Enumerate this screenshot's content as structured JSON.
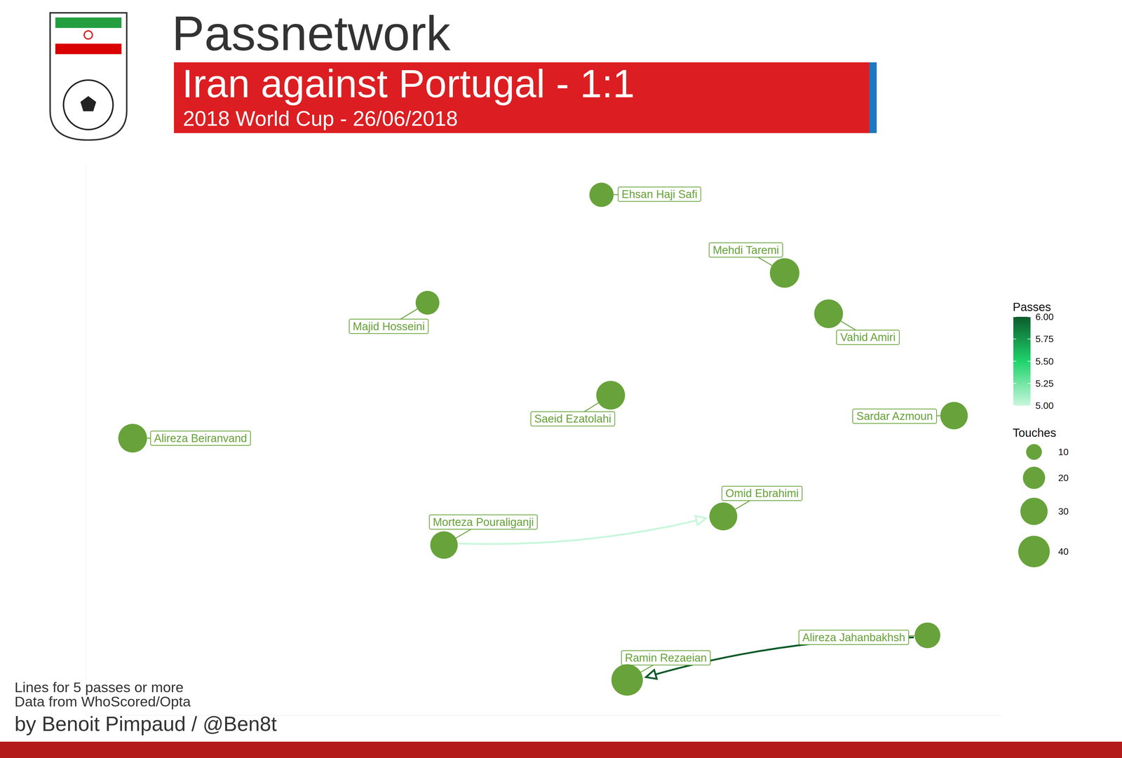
{
  "chart_data": {
    "type": "network",
    "title": "Passnetwork",
    "subtitle": "Iran against Portugal - 1:1",
    "caption": "2018 World Cup - 26/06/2018",
    "notes": [
      "Lines for 5 passes or more",
      "Data from WhoScored/Opta"
    ],
    "credit": "by Benoit Pimpaud / @Ben8t",
    "xlim": [
      0,
      100
    ],
    "ylim": [
      0,
      100
    ],
    "tick_labels": false,
    "grid": false,
    "color": "#67a33a",
    "nodes": [
      {
        "name": "Ehsan Haji Safi",
        "x": 56.3,
        "y": 94.5,
        "touches": 25
      },
      {
        "name": "Mehdi Taremi",
        "x": 76.3,
        "y": 80.3,
        "touches": 37
      },
      {
        "name": "Majid Hosseini",
        "x": 37.3,
        "y": 74.9,
        "touches": 24
      },
      {
        "name": "Vahid Amiri",
        "x": 81.1,
        "y": 72.9,
        "touches": 35
      },
      {
        "name": "Saeid Ezatolahi",
        "x": 57.3,
        "y": 58.1,
        "touches": 35
      },
      {
        "name": "Alireza Beiranvand",
        "x": 5.1,
        "y": 50.3,
        "touches": 35
      },
      {
        "name": "Sardar Azmoun",
        "x": 94.8,
        "y": 54.4,
        "touches": 32
      },
      {
        "name": "Omid Ebrahimi",
        "x": 69.6,
        "y": 36.1,
        "touches": 33
      },
      {
        "name": "Morteza Pouraliganji",
        "x": 39.1,
        "y": 30.9,
        "touches": 32
      },
      {
        "name": "Ramin Rezaeian",
        "x": 59.1,
        "y": 6.4,
        "touches": 42
      },
      {
        "name": "Alireza Jahanbakhsh",
        "x": 91.9,
        "y": 14.5,
        "touches": 28
      }
    ],
    "edges": [
      {
        "source": "Morteza Pouraliganji",
        "target": "Omid Ebrahimi",
        "passes": 5
      },
      {
        "source": "Alireza Jahanbakhsh",
        "target": "Ramin Rezaeian",
        "passes": 6
      }
    ],
    "colorbar": {
      "title": "Passes",
      "range": [
        5,
        6
      ],
      "ticks": [
        {
          "value": 5,
          "label": "5.00"
        },
        {
          "value": 5.25,
          "label": "5.25"
        },
        {
          "value": 5.5,
          "label": "5.50"
        },
        {
          "value": 5.75,
          "label": "5.75"
        },
        {
          "value": 6,
          "label": "6.00"
        }
      ],
      "colors": [
        "#c8f7dc",
        "#1ed36b",
        "#0b5b2b"
      ]
    },
    "size_legend": {
      "title": "Touches",
      "ticks": [
        10,
        20,
        30,
        40
      ]
    }
  }
}
